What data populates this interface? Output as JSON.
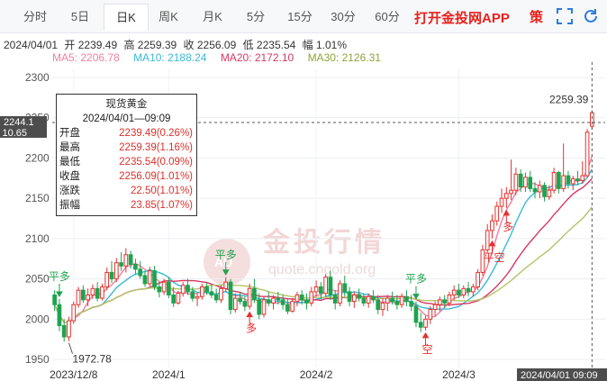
{
  "tabs": [
    {
      "label": "分时"
    },
    {
      "label": "5日"
    },
    {
      "label": "日K",
      "active": true
    },
    {
      "label": "周K"
    },
    {
      "label": "月K"
    },
    {
      "label": "5分"
    },
    {
      "label": "15分"
    },
    {
      "label": "30分"
    },
    {
      "label": "60分"
    }
  ],
  "promo_text": "打开金投网APP",
  "controls": {
    "strategy_label": "策",
    "fullscreen_icon": "expand-icon",
    "refresh_icon": "refresh-icon"
  },
  "info": {
    "date": "2024/04/01",
    "open": "开 2239.49",
    "high": "高 2259.39",
    "close": "收 2256.09",
    "low": "低 2235.54",
    "range": "幅 1.01%"
  },
  "ma": {
    "ma5": "MA5: 2206.78",
    "ma10": "MA10: 2188.24",
    "ma20": "MA20: 2172.10",
    "ma30": "MA30: 2126.31",
    "colors": {
      "ma5": "#f07fa0",
      "ma10": "#3ab9d8",
      "ma20": "#d63864",
      "ma30": "#b4c46a"
    }
  },
  "tooltip": {
    "title": "现货黄金",
    "datetime": "2024/04/01—09:09",
    "rows": [
      {
        "label": "开盘",
        "value": "2239.49(0.26%)"
      },
      {
        "label": "最高",
        "value": "2259.39(1.16%)"
      },
      {
        "label": "最低",
        "value": "2235.54(0.09%)"
      },
      {
        "label": "收盘",
        "value": "2256.09(1.01%)"
      },
      {
        "label": "涨跌",
        "value": "22.50(1.01%)"
      },
      {
        "label": "振幅",
        "value": "23.85(1.07%)"
      }
    ]
  },
  "crosshair": {
    "price_label": "2244.1",
    "sub_label": "10.65",
    "time_label": "2024/04/01 09:09"
  },
  "annotations": {
    "high": "2259.39",
    "low": "1972.78"
  },
  "signals": [
    {
      "text": "平多",
      "dir": "down",
      "day": 1
    },
    {
      "text": "平多",
      "dir": "down",
      "day": 36
    },
    {
      "text": "多",
      "dir": "up",
      "day": 41
    },
    {
      "text": "平多",
      "dir": "down",
      "day": 76
    },
    {
      "text": "空",
      "dir": "up",
      "day": 78
    },
    {
      "text": "平空",
      "dir": "up",
      "day": 92
    },
    {
      "text": "多",
      "dir": "up",
      "day": 95
    }
  ],
  "watermark": {
    "cn": "金投行情",
    "en": "quote.cngold.org",
    "logo": "AU"
  },
  "chart_data": {
    "type": "candlestick",
    "y_ticks": [
      1950,
      2000,
      2050,
      2100,
      2150,
      2200,
      2250,
      2300
    ],
    "ylim": [
      1940,
      2310
    ],
    "x_ticks": [
      {
        "label": "2023/12/8",
        "day": 4
      },
      {
        "label": "2024/1",
        "day": 24
      },
      {
        "label": "2024/2",
        "day": 55
      },
      {
        "label": "2024/3",
        "day": 85
      }
    ],
    "candles": [
      {
        "o": 2030,
        "h": 2036,
        "l": 2010,
        "c": 2018
      },
      {
        "o": 2018,
        "h": 2025,
        "l": 1985,
        "c": 1992
      },
      {
        "o": 1992,
        "h": 2000,
        "l": 1972,
        "c": 1978
      },
      {
        "o": 1978,
        "h": 2003,
        "l": 1972.78,
        "c": 1998
      },
      {
        "o": 1998,
        "h": 2022,
        "l": 1994,
        "c": 2018
      },
      {
        "o": 2018,
        "h": 2040,
        "l": 2014,
        "c": 2036
      },
      {
        "o": 2036,
        "h": 2042,
        "l": 2020,
        "c": 2024
      },
      {
        "o": 2024,
        "h": 2038,
        "l": 2016,
        "c": 2030
      },
      {
        "o": 2030,
        "h": 2043,
        "l": 2025,
        "c": 2038
      },
      {
        "o": 2038,
        "h": 2046,
        "l": 2022,
        "c": 2026
      },
      {
        "o": 2026,
        "h": 2044,
        "l": 2023,
        "c": 2040
      },
      {
        "o": 2040,
        "h": 2064,
        "l": 2036,
        "c": 2058
      },
      {
        "o": 2058,
        "h": 2072,
        "l": 2045,
        "c": 2050
      },
      {
        "o": 2050,
        "h": 2076,
        "l": 2046,
        "c": 2070
      },
      {
        "o": 2070,
        "h": 2083,
        "l": 2060,
        "c": 2066
      },
      {
        "o": 2066,
        "h": 2088,
        "l": 2058,
        "c": 2080
      },
      {
        "o": 2080,
        "h": 2085,
        "l": 2063,
        "c": 2068
      },
      {
        "o": 2068,
        "h": 2075,
        "l": 2055,
        "c": 2062
      },
      {
        "o": 2062,
        "h": 2072,
        "l": 2050,
        "c": 2054
      },
      {
        "o": 2054,
        "h": 2060,
        "l": 2040,
        "c": 2044
      },
      {
        "o": 2044,
        "h": 2065,
        "l": 2041,
        "c": 2060
      },
      {
        "o": 2060,
        "h": 2066,
        "l": 2036,
        "c": 2040
      },
      {
        "o": 2040,
        "h": 2046,
        "l": 2027,
        "c": 2034
      },
      {
        "o": 2034,
        "h": 2050,
        "l": 2030,
        "c": 2046
      },
      {
        "o": 2046,
        "h": 2052,
        "l": 2026,
        "c": 2030
      },
      {
        "o": 2030,
        "h": 2040,
        "l": 2015,
        "c": 2020
      },
      {
        "o": 2020,
        "h": 2035,
        "l": 2018,
        "c": 2032
      },
      {
        "o": 2032,
        "h": 2046,
        "l": 2028,
        "c": 2042
      },
      {
        "o": 2042,
        "h": 2050,
        "l": 2030,
        "c": 2034
      },
      {
        "o": 2034,
        "h": 2040,
        "l": 2022,
        "c": 2026
      },
      {
        "o": 2026,
        "h": 2032,
        "l": 2016,
        "c": 2028
      },
      {
        "o": 2028,
        "h": 2044,
        "l": 2024,
        "c": 2040
      },
      {
        "o": 2040,
        "h": 2045,
        "l": 2030,
        "c": 2034
      },
      {
        "o": 2034,
        "h": 2042,
        "l": 2026,
        "c": 2030
      },
      {
        "o": 2030,
        "h": 2038,
        "l": 2020,
        "c": 2024
      },
      {
        "o": 2024,
        "h": 2042,
        "l": 2020,
        "c": 2038
      },
      {
        "o": 2038,
        "h": 2052,
        "l": 2034,
        "c": 2046
      },
      {
        "o": 2046,
        "h": 2050,
        "l": 2006,
        "c": 2012
      },
      {
        "o": 2012,
        "h": 2032,
        "l": 2008,
        "c": 2026
      },
      {
        "o": 2026,
        "h": 2034,
        "l": 2018,
        "c": 2022
      },
      {
        "o": 2022,
        "h": 2028,
        "l": 2010,
        "c": 2016
      },
      {
        "o": 2016,
        "h": 2044,
        "l": 2012,
        "c": 2038
      },
      {
        "o": 2038,
        "h": 2050,
        "l": 2020,
        "c": 2024
      },
      {
        "o": 2024,
        "h": 2032,
        "l": 2000,
        "c": 2006
      },
      {
        "o": 2006,
        "h": 2028,
        "l": 2002,
        "c": 2024
      },
      {
        "o": 2024,
        "h": 2034,
        "l": 2016,
        "c": 2020
      },
      {
        "o": 2020,
        "h": 2030,
        "l": 2012,
        "c": 2026
      },
      {
        "o": 2026,
        "h": 2034,
        "l": 2018,
        "c": 2024
      },
      {
        "o": 2024,
        "h": 2030,
        "l": 2012,
        "c": 2018
      },
      {
        "o": 2018,
        "h": 2026,
        "l": 2006,
        "c": 2010
      },
      {
        "o": 2010,
        "h": 2026,
        "l": 2008,
        "c": 2022
      },
      {
        "o": 2022,
        "h": 2034,
        "l": 2016,
        "c": 2030
      },
      {
        "o": 2030,
        "h": 2036,
        "l": 2018,
        "c": 2024
      },
      {
        "o": 2024,
        "h": 2032,
        "l": 2012,
        "c": 2020
      },
      {
        "o": 2020,
        "h": 2040,
        "l": 2016,
        "c": 2034
      },
      {
        "o": 2034,
        "h": 2048,
        "l": 2028,
        "c": 2040
      },
      {
        "o": 2040,
        "h": 2046,
        "l": 2026,
        "c": 2032
      },
      {
        "o": 2032,
        "h": 2056,
        "l": 2028,
        "c": 2052
      },
      {
        "o": 2052,
        "h": 2060,
        "l": 2024,
        "c": 2030
      },
      {
        "o": 2030,
        "h": 2036,
        "l": 2012,
        "c": 2020
      },
      {
        "o": 2020,
        "h": 2048,
        "l": 2016,
        "c": 2044
      },
      {
        "o": 2044,
        "h": 2054,
        "l": 2028,
        "c": 2034
      },
      {
        "o": 2034,
        "h": 2040,
        "l": 2016,
        "c": 2022
      },
      {
        "o": 2022,
        "h": 2034,
        "l": 2014,
        "c": 2030
      },
      {
        "o": 2030,
        "h": 2038,
        "l": 2022,
        "c": 2026
      },
      {
        "o": 2026,
        "h": 2032,
        "l": 2016,
        "c": 2020
      },
      {
        "o": 2020,
        "h": 2032,
        "l": 2014,
        "c": 2028
      },
      {
        "o": 2028,
        "h": 2036,
        "l": 2020,
        "c": 2024
      },
      {
        "o": 2024,
        "h": 2030,
        "l": 2006,
        "c": 2012
      },
      {
        "o": 2012,
        "h": 2026,
        "l": 2004,
        "c": 2020
      },
      {
        "o": 2020,
        "h": 2030,
        "l": 2010,
        "c": 2026
      },
      {
        "o": 2026,
        "h": 2034,
        "l": 2018,
        "c": 2022
      },
      {
        "o": 2022,
        "h": 2030,
        "l": 2012,
        "c": 2018
      },
      {
        "o": 2018,
        "h": 2032,
        "l": 2014,
        "c": 2028
      },
      {
        "o": 2028,
        "h": 2036,
        "l": 2016,
        "c": 2022
      },
      {
        "o": 2022,
        "h": 2030,
        "l": 2010,
        "c": 2016
      },
      {
        "o": 2016,
        "h": 2022,
        "l": 1990,
        "c": 1996
      },
      {
        "o": 1996,
        "h": 2008,
        "l": 1984,
        "c": 1990
      },
      {
        "o": 1990,
        "h": 2004,
        "l": 1986,
        "c": 2000
      },
      {
        "o": 2000,
        "h": 2016,
        "l": 1994,
        "c": 2012
      },
      {
        "o": 2012,
        "h": 2022,
        "l": 2004,
        "c": 2018
      },
      {
        "o": 2018,
        "h": 2028,
        "l": 2010,
        "c": 2024
      },
      {
        "o": 2024,
        "h": 2030,
        "l": 2014,
        "c": 2020
      },
      {
        "o": 2020,
        "h": 2034,
        "l": 2016,
        "c": 2030
      },
      {
        "o": 2030,
        "h": 2042,
        "l": 2024,
        "c": 2036
      },
      {
        "o": 2036,
        "h": 2044,
        "l": 2026,
        "c": 2030
      },
      {
        "o": 2030,
        "h": 2042,
        "l": 2026,
        "c": 2038
      },
      {
        "o": 2038,
        "h": 2046,
        "l": 2028,
        "c": 2034
      },
      {
        "o": 2034,
        "h": 2044,
        "l": 2028,
        "c": 2040
      },
      {
        "o": 2040,
        "h": 2062,
        "l": 2036,
        "c": 2058
      },
      {
        "o": 2058,
        "h": 2092,
        "l": 2054,
        "c": 2086
      },
      {
        "o": 2086,
        "h": 2118,
        "l": 2082,
        "c": 2110
      },
      {
        "o": 2110,
        "h": 2130,
        "l": 2100,
        "c": 2122
      },
      {
        "o": 2122,
        "h": 2146,
        "l": 2116,
        "c": 2140
      },
      {
        "o": 2140,
        "h": 2162,
        "l": 2132,
        "c": 2150
      },
      {
        "o": 2150,
        "h": 2164,
        "l": 2138,
        "c": 2156
      },
      {
        "o": 2156,
        "h": 2198,
        "l": 2148,
        "c": 2160
      },
      {
        "o": 2160,
        "h": 2188,
        "l": 2154,
        "c": 2180
      },
      {
        "o": 2180,
        "h": 2186,
        "l": 2158,
        "c": 2164
      },
      {
        "o": 2164,
        "h": 2182,
        "l": 2158,
        "c": 2176
      },
      {
        "o": 2176,
        "h": 2184,
        "l": 2158,
        "c": 2162
      },
      {
        "o": 2162,
        "h": 2170,
        "l": 2150,
        "c": 2158
      },
      {
        "o": 2158,
        "h": 2172,
        "l": 2150,
        "c": 2166
      },
      {
        "o": 2166,
        "h": 2170,
        "l": 2146,
        "c": 2152
      },
      {
        "o": 2152,
        "h": 2166,
        "l": 2148,
        "c": 2160
      },
      {
        "o": 2160,
        "h": 2188,
        "l": 2156,
        "c": 2182
      },
      {
        "o": 2182,
        "h": 2184,
        "l": 2156,
        "c": 2162
      },
      {
        "o": 2162,
        "h": 2218,
        "l": 2158,
        "c": 2178
      },
      {
        "o": 2178,
        "h": 2184,
        "l": 2162,
        "c": 2168
      },
      {
        "o": 2168,
        "h": 2178,
        "l": 2160,
        "c": 2174
      },
      {
        "o": 2174,
        "h": 2184,
        "l": 2166,
        "c": 2172
      },
      {
        "o": 2172,
        "h": 2196,
        "l": 2168,
        "c": 2178
      },
      {
        "o": 2178,
        "h": 2236,
        "l": 2176,
        "c": 2232
      },
      {
        "o": 2239.49,
        "h": 2259.39,
        "l": 2235.54,
        "c": 2256.09
      }
    ],
    "ma_series": {
      "MA5": "ma5",
      "MA10": "ma10",
      "MA20": "ma20",
      "MA30": "ma30"
    },
    "grid": true,
    "up_color": "#e3322f",
    "down_color": "#1ea34e"
  }
}
